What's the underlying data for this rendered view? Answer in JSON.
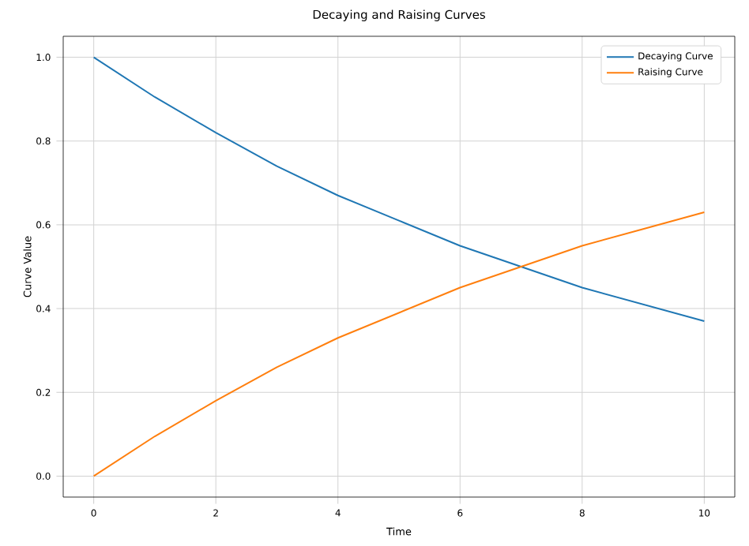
{
  "chart_data": {
    "type": "line",
    "title": "Decaying and Raising Curves",
    "xlabel": "Time",
    "ylabel": "Curve Value",
    "x": [
      0,
      1,
      2,
      3,
      4,
      5,
      6,
      7,
      8,
      9,
      10
    ],
    "series": [
      {
        "name": "Decaying Curve",
        "color": "#1f77b4",
        "values": [
          1.0,
          0.905,
          0.82,
          0.74,
          0.67,
          0.61,
          0.55,
          0.5,
          0.45,
          0.41,
          0.37
        ]
      },
      {
        "name": "Raising Curve",
        "color": "#ff7f0e",
        "values": [
          0.0,
          0.095,
          0.18,
          0.26,
          0.33,
          0.39,
          0.45,
          0.5,
          0.55,
          0.59,
          0.63
        ]
      }
    ],
    "xlim": [
      -0.5,
      10.5
    ],
    "ylim": [
      -0.05,
      1.05
    ],
    "xticks": [
      0,
      2,
      4,
      6,
      8,
      10
    ],
    "yticks": [
      {
        "value": 0,
        "label": "0.0"
      },
      {
        "value": 0.2,
        "label": "0.2"
      },
      {
        "value": 0.4,
        "label": "0.4"
      },
      {
        "value": 0.6,
        "label": "0.6"
      },
      {
        "value": 0.8,
        "label": "0.8"
      },
      {
        "value": 1.0,
        "label": "1.0"
      }
    ],
    "grid": true,
    "legend": "top right",
    "marker": "none",
    "line_style": "solid"
  }
}
